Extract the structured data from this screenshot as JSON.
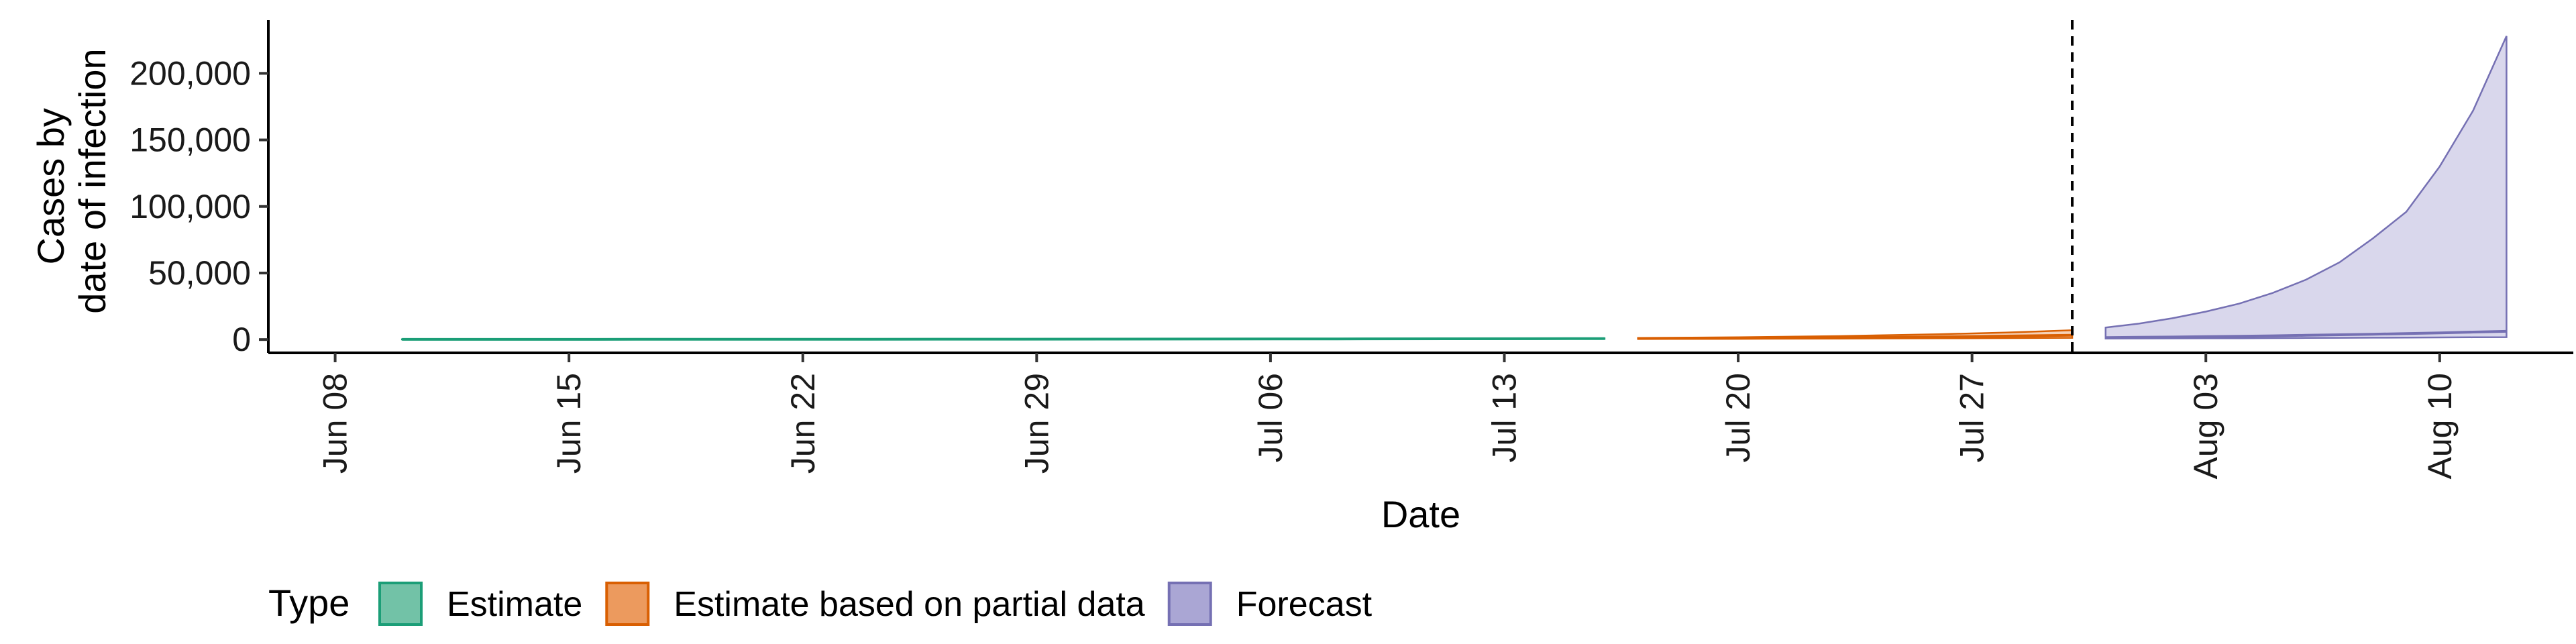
{
  "chart_data": {
    "type": "area",
    "xlabel": "Date",
    "ylabel": [
      "Cases by",
      "date of infection"
    ],
    "x_ticks": [
      "Jun 08",
      "Jun 15",
      "Jun 22",
      "Jun 29",
      "Jul 06",
      "Jul 13",
      "Jul 20",
      "Jul 27",
      "Aug 03",
      "Aug 10"
    ],
    "x_tick_dates": [
      "2020-06-08",
      "2020-06-15",
      "2020-06-22",
      "2020-06-29",
      "2020-07-06",
      "2020-07-13",
      "2020-07-20",
      "2020-07-27",
      "2020-08-03",
      "2020-08-10"
    ],
    "x_range": [
      "2020-06-06",
      "2020-08-14"
    ],
    "y_ticks": [
      "0",
      "50,000",
      "100,000",
      "150,000",
      "200,000"
    ],
    "y_tick_values": [
      0,
      50000,
      100000,
      150000,
      200000
    ],
    "ylim": [
      -10000,
      240000
    ],
    "grid": false,
    "vline_date": "2020-07-30",
    "legend": {
      "title": "Type",
      "placement": "bottom",
      "entries": [
        {
          "label": "Estimate",
          "fill": "#72c2a7",
          "stroke": "#1b9e77"
        },
        {
          "label": "Estimate based on partial data",
          "fill": "#ec9a5e",
          "stroke": "#d95f02"
        },
        {
          "label": "Forecast",
          "fill": "#aaa6d4",
          "stroke": "#7570b3"
        }
      ]
    },
    "series": [
      {
        "name": "Estimate",
        "color": "#1b9e77",
        "x": [
          "2020-06-10",
          "2020-06-17",
          "2020-06-24",
          "2020-07-01",
          "2020-07-08",
          "2020-07-15",
          "2020-07-16"
        ],
        "lower": [
          100,
          130,
          170,
          230,
          320,
          450,
          480
        ],
        "upper": [
          200,
          260,
          340,
          470,
          660,
          900,
          950
        ],
        "median": [
          150,
          190,
          250,
          340,
          480,
          670,
          700
        ]
      },
      {
        "name": "Estimate based on partial data",
        "color": "#d95f02",
        "x": [
          "2020-07-17",
          "2020-07-20",
          "2020-07-23",
          "2020-07-26",
          "2020-07-28",
          "2020-07-30"
        ],
        "lower": [
          500,
          600,
          750,
          950,
          1100,
          1300
        ],
        "upper": [
          1200,
          1700,
          2600,
          4000,
          5200,
          7000
        ],
        "median": [
          800,
          1000,
          1400,
          2000,
          2600,
          3200
        ]
      },
      {
        "name": "Forecast",
        "color": "#7570b3",
        "x": [
          "2020-07-31",
          "2020-08-01",
          "2020-08-02",
          "2020-08-03",
          "2020-08-04",
          "2020-08-05",
          "2020-08-06",
          "2020-08-07",
          "2020-08-08",
          "2020-08-09",
          "2020-08-10",
          "2020-08-11",
          "2020-08-12"
        ],
        "lower": [
          800,
          850,
          900,
          950,
          1000,
          1100,
          1200,
          1300,
          1400,
          1500,
          1600,
          1700,
          1800
        ],
        "upper": [
          9000,
          12000,
          16000,
          21000,
          27000,
          35000,
          45000,
          58000,
          76000,
          96000,
          130000,
          172000,
          228000
        ],
        "median": [
          1500,
          1700,
          1900,
          2200,
          2500,
          2800,
          3200,
          3600,
          4000,
          4500,
          5000,
          5600,
          6200
        ]
      }
    ]
  }
}
